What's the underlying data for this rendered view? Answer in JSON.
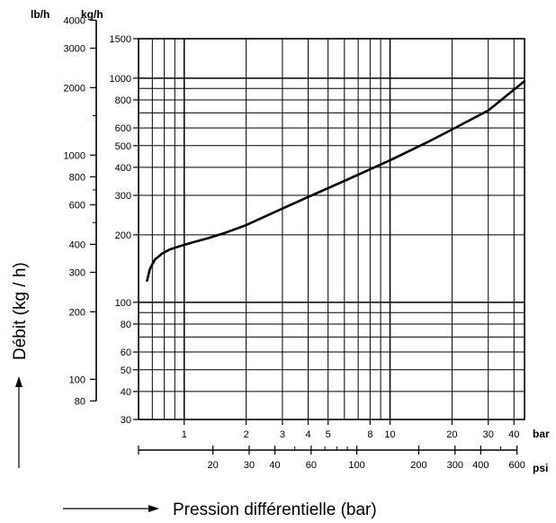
{
  "chart_data": {
    "type": "line",
    "title": "",
    "scale": "log-log",
    "grid": true,
    "xlabel": "Pression différentielle (bar)",
    "ylabel": "Débit (kg / h)",
    "x_unit": "bar",
    "x_secondary_unit": "psi",
    "y_unit": "kg/h",
    "y_secondary_unit": "lb/h",
    "xlim": [
      0.6,
      45
    ],
    "ylim": [
      30,
      1500
    ],
    "x_ticks": [
      1,
      2,
      3,
      4,
      5,
      8,
      10,
      20,
      30,
      40
    ],
    "x_tick_labels": [
      "1",
      "2",
      "3",
      "4",
      "5",
      "8",
      "10",
      "20",
      "30",
      "40"
    ],
    "x_secondary_ticks": [
      20,
      30,
      40,
      60,
      100,
      200,
      300,
      400,
      600
    ],
    "x_secondary_tick_labels": [
      "20",
      "30",
      "40",
      "60",
      "100",
      "200",
      "300",
      "400",
      "600"
    ],
    "y_ticks": [
      30,
      40,
      50,
      60,
      80,
      100,
      200,
      300,
      400,
      500,
      600,
      800,
      1000,
      1500
    ],
    "y_tick_labels": [
      "30",
      "40",
      "50",
      "60",
      "80",
      "100",
      "200",
      "300",
      "400",
      "500",
      "600",
      "800",
      "1000",
      "1500"
    ],
    "y_secondary_ticks": [
      80,
      100,
      200,
      300,
      400,
      600,
      800,
      1000,
      2000,
      3000,
      4000
    ],
    "y_secondary_tick_labels": [
      "80",
      "100",
      "200",
      "300",
      "400",
      "600",
      "800",
      "1000",
      "2000",
      "3000",
      "4000"
    ],
    "series": [
      {
        "x": [
          0.66,
          0.68,
          0.72,
          0.78,
          0.85,
          0.95,
          1.1,
          1.3,
          1.6,
          2,
          3,
          4,
          5,
          6,
          8,
          10,
          15,
          20,
          30,
          45
        ],
        "y": [
          125,
          140,
          155,
          165,
          172,
          178,
          185,
          193,
          205,
          221,
          262,
          295,
          323,
          348,
          392,
          430,
          515,
          590,
          718,
          970
        ]
      }
    ]
  }
}
